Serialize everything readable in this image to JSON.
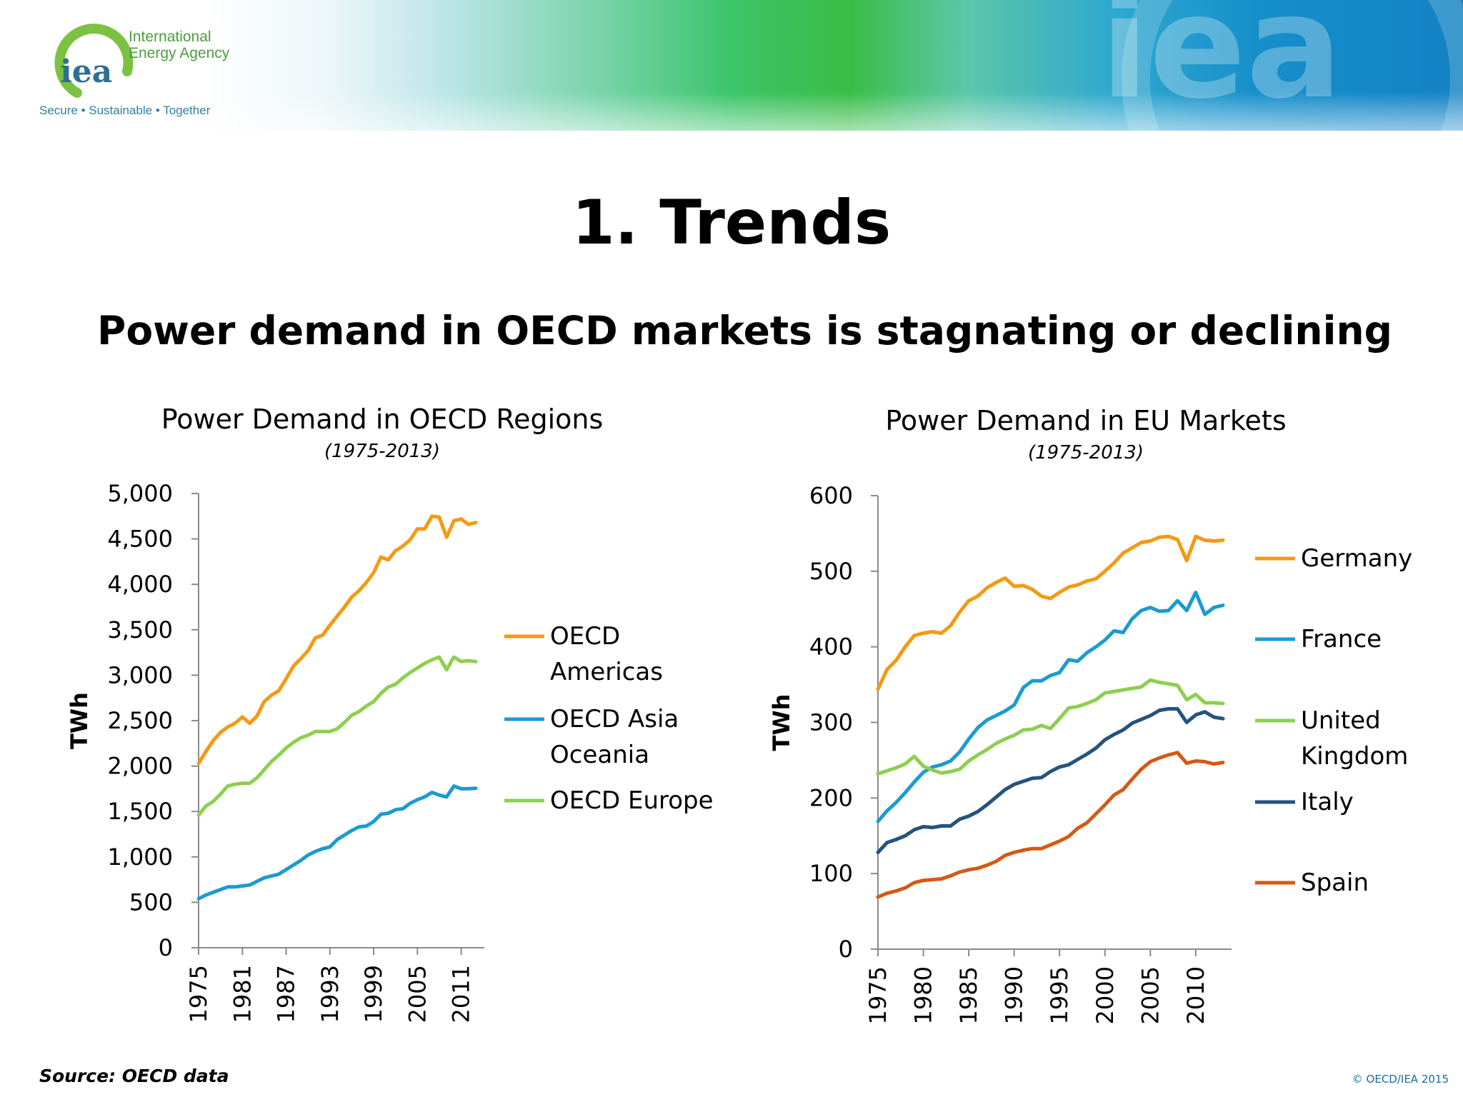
{
  "logo": {
    "name_line1": "International",
    "name_line2": "Energy Agency",
    "mark": "iea",
    "tagline": "Secure • Sustainable • Together",
    "watermark": "iea"
  },
  "slide": {
    "title": "1. Trends",
    "subtitle": "Power demand in OECD markets is stagnating or declining",
    "source": "Source: OECD data",
    "copyright": "© OECD/IEA 2015"
  },
  "colors": {
    "orange": "#f39a13",
    "blue": "#1b9bd1",
    "green": "#8dcf4f",
    "navy": "#24537e",
    "darkorange": "#d35a14",
    "axis": "#8a8a8a"
  },
  "chart_data": [
    {
      "type": "line",
      "title": "Power Demand in OECD Regions",
      "subtitle": "(1975-2013)",
      "ylabel": "TWh",
      "xlabel": "",
      "ylim": [
        0,
        5000
      ],
      "yticks": [
        0,
        500,
        1000,
        1500,
        2000,
        2500,
        3000,
        3500,
        4000,
        4500,
        5000
      ],
      "ytick_labels": [
        "0",
        "500",
        "1,000",
        "1,500",
        "2,000",
        "2,500",
        "3,000",
        "3,500",
        "4,000",
        "4,500",
        "5,000"
      ],
      "xticks": [
        "1975",
        "1981",
        "1987",
        "1993",
        "1999",
        "2005",
        "2011"
      ],
      "x": [
        1975,
        1976,
        1977,
        1978,
        1979,
        1980,
        1981,
        1982,
        1983,
        1984,
        1985,
        1986,
        1987,
        1988,
        1989,
        1990,
        1991,
        1992,
        1993,
        1994,
        1995,
        1996,
        1997,
        1998,
        1999,
        2000,
        2001,
        2002,
        2003,
        2004,
        2005,
        2006,
        2007,
        2008,
        2009,
        2010,
        2011,
        2012,
        2013
      ],
      "legend_position": "right",
      "grid": false,
      "series": [
        {
          "name": "OECD Americas",
          "color": "orange",
          "legend_lines": [
            "OECD",
            "Americas"
          ],
          "values": [
            2030,
            2160,
            2280,
            2370,
            2430,
            2470,
            2540,
            2470,
            2550,
            2710,
            2780,
            2830,
            2960,
            3100,
            3180,
            3270,
            3410,
            3440,
            3550,
            3650,
            3750,
            3860,
            3930,
            4020,
            4130,
            4300,
            4270,
            4370,
            4420,
            4490,
            4610,
            4610,
            4750,
            4740,
            4520,
            4700,
            4720,
            4660,
            4680
          ]
        },
        {
          "name": "OECD Asia Oceania",
          "color": "blue",
          "legend_lines": [
            "OECD Asia",
            "Oceania"
          ],
          "values": [
            540,
            580,
            610,
            640,
            670,
            670,
            680,
            690,
            730,
            770,
            790,
            810,
            860,
            910,
            960,
            1020,
            1060,
            1090,
            1110,
            1190,
            1240,
            1290,
            1330,
            1340,
            1390,
            1470,
            1480,
            1520,
            1530,
            1590,
            1630,
            1660,
            1710,
            1680,
            1660,
            1780,
            1750,
            1750,
            1755
          ]
        },
        {
          "name": "OECD Europe",
          "color": "green",
          "legend_lines": [
            "OECD Europe"
          ],
          "values": [
            1460,
            1560,
            1610,
            1690,
            1780,
            1800,
            1810,
            1810,
            1870,
            1960,
            2050,
            2120,
            2200,
            2260,
            2310,
            2340,
            2380,
            2380,
            2380,
            2410,
            2480,
            2560,
            2600,
            2660,
            2710,
            2800,
            2870,
            2900,
            2970,
            3030,
            3080,
            3130,
            3170,
            3200,
            3060,
            3200,
            3150,
            3160,
            3150
          ]
        }
      ]
    },
    {
      "type": "line",
      "title": "Power Demand in EU Markets",
      "subtitle": "(1975-2013)",
      "ylabel": "TWh",
      "xlabel": "",
      "ylim": [
        0,
        600
      ],
      "yticks": [
        0,
        100,
        200,
        300,
        400,
        500,
        600
      ],
      "ytick_labels": [
        "0",
        "100",
        "200",
        "300",
        "400",
        "500",
        "600"
      ],
      "xticks": [
        "1975",
        "1980",
        "1985",
        "1990",
        "1995",
        "2000",
        "2005",
        "2010"
      ],
      "x": [
        1975,
        1976,
        1977,
        1978,
        1979,
        1980,
        1981,
        1982,
        1983,
        1984,
        1985,
        1986,
        1987,
        1988,
        1989,
        1990,
        1991,
        1992,
        1993,
        1994,
        1995,
        1996,
        1997,
        1998,
        1999,
        2000,
        2001,
        2002,
        2003,
        2004,
        2005,
        2006,
        2007,
        2008,
        2009,
        2010,
        2011,
        2012,
        2013
      ],
      "legend_position": "right",
      "grid": false,
      "series": [
        {
          "name": "Germany",
          "color": "orange",
          "legend_lines": [
            "Germany"
          ],
          "values": [
            344,
            370,
            382,
            400,
            415,
            418,
            420,
            418,
            428,
            446,
            461,
            467,
            478,
            485,
            491,
            480,
            481,
            476,
            467,
            464,
            472,
            479,
            482,
            487,
            490,
            500,
            511,
            524,
            531,
            538,
            540,
            545,
            546,
            542,
            514,
            546,
            541,
            540,
            541
          ]
        },
        {
          "name": "France",
          "color": "blue",
          "legend_lines": [
            "France"
          ],
          "values": [
            169,
            183,
            194,
            207,
            221,
            234,
            241,
            244,
            249,
            261,
            278,
            293,
            303,
            309,
            315,
            323,
            346,
            355,
            355,
            362,
            366,
            383,
            381,
            392,
            400,
            409,
            421,
            419,
            437,
            448,
            452,
            447,
            448,
            461,
            448,
            472,
            443,
            452,
            455
          ]
        },
        {
          "name": "United Kingdom",
          "color": "green",
          "legend_lines": [
            "United",
            "Kingdom"
          ],
          "values": [
            232,
            236,
            240,
            245,
            255,
            242,
            237,
            233,
            235,
            238,
            249,
            257,
            264,
            272,
            278,
            283,
            290,
            291,
            296,
            292,
            305,
            319,
            321,
            325,
            330,
            339,
            341,
            343,
            345,
            347,
            356,
            353,
            351,
            349,
            330,
            337,
            326,
            326,
            325
          ]
        },
        {
          "name": "Italy",
          "color": "navy",
          "legend_lines": [
            "Italy"
          ],
          "values": [
            128,
            141,
            145,
            150,
            158,
            162,
            161,
            163,
            163,
            172,
            176,
            182,
            191,
            201,
            211,
            218,
            222,
            226,
            227,
            235,
            241,
            244,
            251,
            258,
            266,
            277,
            284,
            290,
            299,
            304,
            309,
            316,
            318,
            318,
            300,
            310,
            314,
            307,
            305
          ]
        },
        {
          "name": "Spain",
          "color": "darkorange",
          "legend_lines": [
            "Spain"
          ],
          "values": [
            69,
            74,
            77,
            81,
            88,
            91,
            92,
            93,
            97,
            102,
            105,
            107,
            111,
            116,
            124,
            128,
            131,
            133,
            133,
            138,
            143,
            149,
            160,
            167,
            179,
            191,
            204,
            211,
            225,
            238,
            248,
            253,
            257,
            260,
            246,
            249,
            248,
            245,
            247
          ]
        }
      ]
    }
  ]
}
